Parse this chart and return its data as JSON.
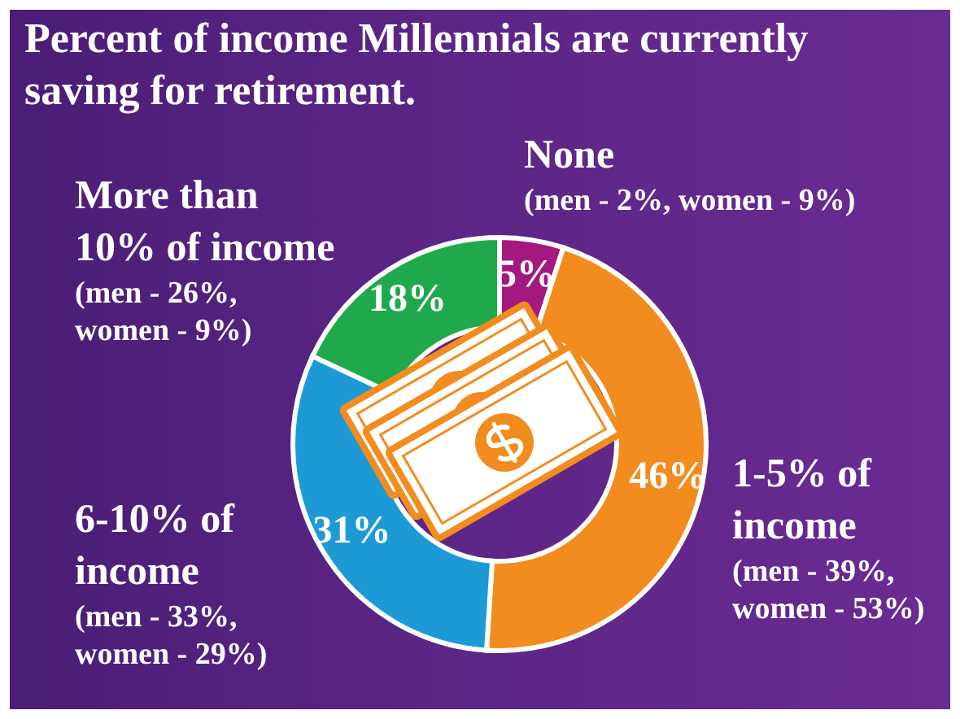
{
  "chart_data": {
    "type": "donut",
    "title": "Percent of income Millennials are currently saving for retirement.",
    "categories": [
      "None",
      "1-5% of income",
      "6-10% of income",
      "More than 10% of income"
    ],
    "values": [
      5,
      46,
      31,
      18
    ],
    "colors": [
      "#a3197f",
      "#f28c1f",
      "#1d9ad6",
      "#20a94c"
    ],
    "value_labels": [
      "5%",
      "46%",
      "31%",
      "18%"
    ],
    "annotations": [
      "(men - 2%, women - 9%)",
      "(men - 39%, women - 53%)",
      "(men - 33%, women - 29%)",
      "(men - 26%, women - 9%)"
    ]
  }
}
